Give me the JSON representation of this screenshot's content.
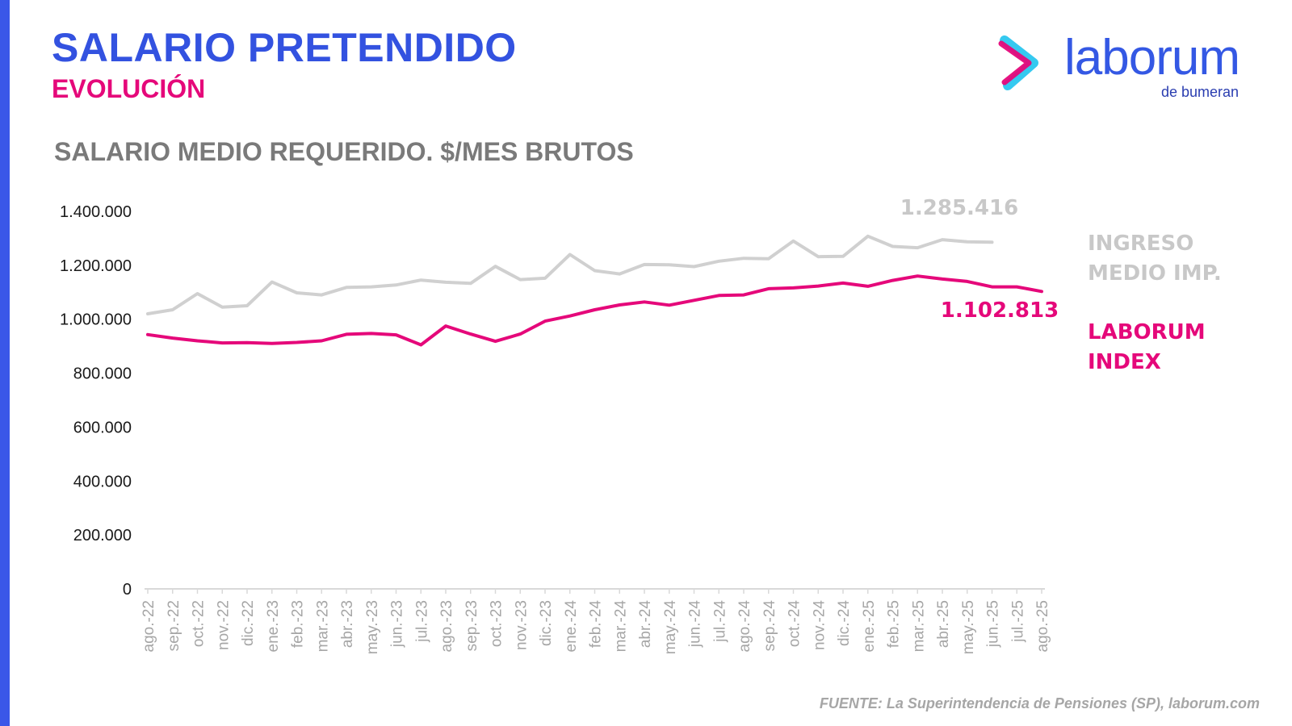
{
  "header": {
    "title": "SALARIO PRETENDIDO",
    "subtitle": "EVOLUCIÓN"
  },
  "logo": {
    "word": "laborum",
    "sub": "de bumeran"
  },
  "source": "FUENTE: La Superintendencia de Pensiones (SP), laborum.com",
  "colors": {
    "title": "#3352e0",
    "accent": "#e5087a",
    "ingreso": "#d0d0d0",
    "laborum": "#e5087a"
  },
  "chart_data": {
    "type": "line",
    "title": "SALARIO MEDIO REQUERIDO. $/MES BRUTOS",
    "xlabel": "",
    "ylabel": "",
    "ylim": [
      0,
      1400000
    ],
    "yticks": [
      "0",
      "200.000",
      "400.000",
      "600.000",
      "800.000",
      "1.000.000",
      "1.200.000",
      "1.400.000"
    ],
    "categories": [
      "ago.-22",
      "sep.-22",
      "oct.-22",
      "nov.-22",
      "dic.-22",
      "ene.-23",
      "feb.-23",
      "mar.-23",
      "abr.-23",
      "may.-23",
      "jun.-23",
      "jul.-23",
      "ago.-23",
      "sep.-23",
      "oct.-23",
      "nov.-23",
      "dic.-23",
      "ene.-24",
      "feb.-24",
      "mar.-24",
      "abr.-24",
      "may.-24",
      "jun.-24",
      "jul.-24",
      "ago.-24",
      "sep.-24",
      "oct.-24",
      "nov.-24",
      "dic.-24",
      "ene.-25",
      "feb.-25",
      "mar.-25",
      "abr.-25",
      "may.-25",
      "jun.-25",
      "jul.-25",
      "ago.-25"
    ],
    "series": [
      {
        "name": "INGRESO MEDIO IMP.",
        "legend": [
          "INGRESO",
          "MEDIO IMP."
        ],
        "last_label": "1.285.416",
        "values": [
          1020000,
          1035000,
          1095000,
          1045000,
          1050000,
          1138000,
          1098000,
          1090000,
          1118000,
          1120000,
          1127000,
          1145000,
          1137000,
          1133000,
          1196000,
          1147000,
          1152000,
          1240000,
          1180000,
          1168000,
          1203000,
          1202000,
          1195000,
          1215000,
          1226000,
          1224000,
          1290000,
          1232000,
          1233000,
          1308000,
          1270000,
          1265000,
          1295000,
          1287000,
          1285416,
          null,
          null
        ]
      },
      {
        "name": "LABORUM INDEX",
        "legend": [
          "LABORUM",
          "INDEX"
        ],
        "last_label": "1.102.813",
        "values": [
          943000,
          930000,
          920000,
          912000,
          913000,
          910000,
          914000,
          920000,
          944000,
          947000,
          942000,
          905000,
          975000,
          945000,
          918000,
          945000,
          993000,
          1012000,
          1035000,
          1053000,
          1064000,
          1052000,
          1070000,
          1088000,
          1090000,
          1113000,
          1116000,
          1123000,
          1134000,
          1122000,
          1144000,
          1160000,
          1149000,
          1140000,
          1120000,
          1120000,
          1102813
        ]
      }
    ]
  }
}
